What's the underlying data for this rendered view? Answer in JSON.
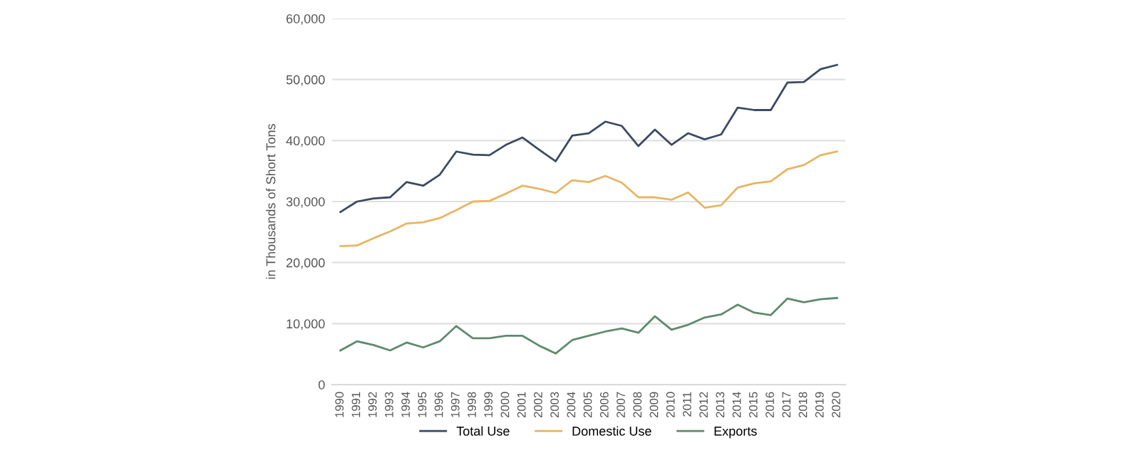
{
  "chart_data": {
    "type": "line",
    "ylabel": "in Thousands of Short Tons",
    "categories": [
      "1990",
      "1991",
      "1992",
      "1993",
      "1994",
      "1995",
      "1996",
      "1997",
      "1998",
      "1999",
      "2000",
      "2001",
      "2002",
      "2003",
      "2004",
      "2005",
      "2006",
      "2007",
      "2008",
      "2009",
      "2010",
      "2011",
      "2012",
      "2013",
      "2014",
      "2015",
      "2016",
      "2017",
      "2018",
      "2019",
      "2020"
    ],
    "series": [
      {
        "name": "Total Use",
        "color": "#3b4a63",
        "values": [
          28300,
          30000,
          30500,
          30700,
          33200,
          32600,
          34400,
          38200,
          37700,
          37600,
          39300,
          40500,
          38500,
          36600,
          40800,
          41200,
          43100,
          42400,
          39100,
          41800,
          39300,
          41200,
          40200,
          41000,
          45400,
          45000,
          45000,
          49500,
          49600,
          51700,
          52400
        ]
      },
      {
        "name": "Domestic Use",
        "color": "#e8b563",
        "values": [
          22700,
          22800,
          24000,
          25100,
          26400,
          26600,
          27300,
          28600,
          30000,
          30100,
          31300,
          32600,
          32100,
          31400,
          33500,
          33200,
          34200,
          33100,
          30700,
          30700,
          30300,
          31500,
          29000,
          29400,
          32300,
          33000,
          33300,
          35300,
          36000,
          37600,
          38200
        ]
      },
      {
        "name": "Exports",
        "color": "#5f8a6e",
        "values": [
          5600,
          7100,
          6500,
          5600,
          6900,
          6100,
          7100,
          9600,
          7600,
          7600,
          8000,
          8000,
          6400,
          5100,
          7300,
          8000,
          8700,
          9200,
          8500,
          11200,
          9000,
          9800,
          11000,
          11500,
          13100,
          11800,
          11400,
          14100,
          13500,
          14000,
          14200
        ]
      }
    ],
    "ylim": [
      0,
      60000
    ],
    "yticks": [
      {
        "value": 0,
        "label": "0"
      },
      {
        "value": 10000,
        "label": "10,000"
      },
      {
        "value": 20000,
        "label": "20,000"
      },
      {
        "value": 30000,
        "label": "30,000"
      },
      {
        "value": 40000,
        "label": "40,000"
      },
      {
        "value": 50000,
        "label": "50,000"
      },
      {
        "value": 60000,
        "label": "60,000"
      }
    ],
    "grid": "y",
    "legend": "bottom",
    "marker": "none",
    "line_style": "solid"
  }
}
